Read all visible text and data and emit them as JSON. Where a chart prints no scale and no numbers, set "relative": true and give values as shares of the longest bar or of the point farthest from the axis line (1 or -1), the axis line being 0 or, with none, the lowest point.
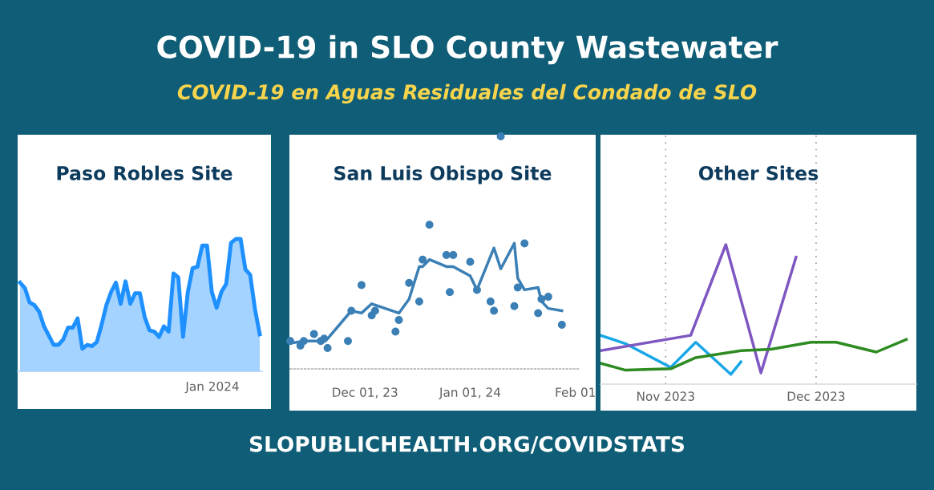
{
  "chart_data": [
    {
      "type": "other",
      "title": "COVID-19 in SLO County Wastewater",
      "subtitle": "COVID-19 en Aguas Residuales del Condado de SLO",
      "annotations": [
        "SLOPUBLICHEALTH.ORG/COVIDSTATS"
      ]
    },
    {
      "type": "area",
      "title": "Paso Robles Site",
      "relative": true,
      "annotations": [
        "Jan 2024"
      ],
      "categories": [
        null,
        null,
        null,
        null,
        null,
        null,
        null,
        null,
        null,
        null,
        null,
        null,
        null,
        null,
        null,
        null,
        null,
        null,
        null,
        null,
        null,
        null,
        null,
        null,
        null,
        null,
        null,
        null,
        null,
        null,
        null,
        null,
        null,
        null,
        null,
        null,
        null,
        null,
        null,
        null,
        null,
        null,
        null,
        null,
        null,
        null,
        null,
        null,
        null,
        null,
        null
      ],
      "series": [
        {
          "color": "#1e90ff",
          "values": [
            0.67,
            0.63,
            0.52,
            0.5,
            0.45,
            0.34,
            0.27,
            0.2,
            0.2,
            0.24,
            0.33,
            0.33,
            0.4,
            0.17,
            0.2,
            0.19,
            0.22,
            0.35,
            0.5,
            0.6,
            0.67,
            0.51,
            0.68,
            0.51,
            0.59,
            0.59,
            0.41,
            0.31,
            0.3,
            0.26,
            0.34,
            0.3,
            0.74,
            0.71,
            0.26,
            0.6,
            0.78,
            0.79,
            0.95,
            0.95,
            0.6,
            0.48,
            0.6,
            0.66,
            0.97,
            1,
            1,
            0.77,
            0.73,
            0.47,
            0.28
          ]
        }
      ]
    },
    {
      "type": "line",
      "title": "San Luis Obispo Site",
      "relative": true,
      "xlim": [
        "2023-11-09",
        "2024-02-02"
      ],
      "xticks": [
        {
          "value": "2023-12-01",
          "label": "Dec 01, 23"
        },
        {
          "value": "2024-01-01",
          "label": "Jan 01, 24"
        },
        {
          "value": "2024-02-01",
          "label": "Feb 01"
        }
      ],
      "series": [
        {
          "type": "line",
          "color": "#3a7fb5",
          "x": [
            "2023-11-09",
            "2023-11-13",
            "2023-11-18",
            "2023-11-20",
            "2023-11-27",
            "2023-11-30",
            "2023-12-03",
            "2023-12-11",
            "2023-12-14",
            "2023-12-17",
            "2023-12-18",
            "2023-12-20",
            "2023-12-25",
            "2023-12-27",
            "2024-01-01",
            "2024-01-03",
            "2024-01-08",
            "2024-01-10",
            "2024-01-14",
            "2024-01-15",
            "2024-01-17",
            "2024-01-21",
            "2024-01-22",
            "2024-01-24",
            "2024-01-28"
          ],
          "values": [
            0.11,
            0.12,
            0.12,
            0.13,
            0.25,
            0.24,
            0.28,
            0.24,
            0.3,
            0.44,
            0.44,
            0.47,
            0.44,
            0.44,
            0.4,
            0.34,
            0.52,
            0.43,
            0.54,
            0.39,
            0.34,
            0.35,
            0.29,
            0.26,
            0.25
          ]
        },
        {
          "type": "scatter",
          "color": "#3a7fb5",
          "marker": "circle",
          "x": [
            "2023-11-09",
            "2023-11-12",
            "2023-11-13",
            "2023-11-16",
            "2023-11-18",
            "2023-11-19",
            "2023-11-20",
            "2023-11-26",
            "2023-11-27",
            "2023-11-30",
            "2023-12-03",
            "2023-12-04",
            "2023-12-10",
            "2023-12-11",
            "2023-12-14",
            "2023-12-17",
            "2023-12-18",
            "2023-12-20",
            "2023-12-25",
            "2023-12-26",
            "2023-12-27",
            "2024-01-01",
            "2024-01-03",
            "2024-01-07",
            "2024-01-08",
            "2024-01-10",
            "2024-01-14",
            "2024-01-15",
            "2024-01-17",
            "2024-01-21",
            "2024-01-22",
            "2024-01-24",
            "2024-01-28"
          ],
          "values": [
            0.12,
            0.1,
            0.12,
            0.15,
            0.12,
            0.13,
            0.09,
            0.12,
            0.25,
            0.36,
            0.23,
            0.25,
            0.16,
            0.21,
            0.37,
            0.29,
            0.47,
            0.62,
            0.49,
            0.33,
            0.49,
            0.46,
            0.34,
            0.29,
            0.25,
            1,
            0.27,
            0.35,
            0.54,
            0.24,
            0.3,
            0.31,
            0.19
          ]
        }
      ]
    },
    {
      "type": "line",
      "title": "Other Sites",
      "relative": true,
      "grid": "x",
      "xlim": [
        "2023-10-19",
        "2023-12-21"
      ],
      "xticks": [
        {
          "value": "2023-11-01",
          "label": "Nov 2023"
        },
        {
          "value": "2023-12-01",
          "label": "Dec 2023"
        }
      ],
      "series": [
        {
          "color": "#1aa7e6",
          "x": [
            "2023-10-19",
            "2023-10-24",
            "2023-11-02",
            "2023-11-07",
            "2023-11-14",
            "2023-11-16"
          ],
          "values": [
            0.35,
            0.29,
            0.12,
            0.3,
            0.07,
            0.16
          ]
        },
        {
          "color": "#7e57c2",
          "x": [
            "2023-10-19",
            "2023-11-06",
            "2023-11-13",
            "2023-11-20",
            "2023-11-27"
          ],
          "values": [
            0.24,
            0.35,
            1,
            0.08,
            0.91
          ]
        },
        {
          "color": "#2e8b22",
          "x": [
            "2023-10-19",
            "2023-10-24",
            "2023-11-02",
            "2023-11-07",
            "2023-11-16",
            "2023-11-22",
            "2023-11-30",
            "2023-12-05",
            "2023-12-13",
            "2023-12-19"
          ],
          "values": [
            0.15,
            0.1,
            0.11,
            0.19,
            0.24,
            0.25,
            0.3,
            0.3,
            0.23,
            0.32
          ]
        }
      ]
    }
  ]
}
